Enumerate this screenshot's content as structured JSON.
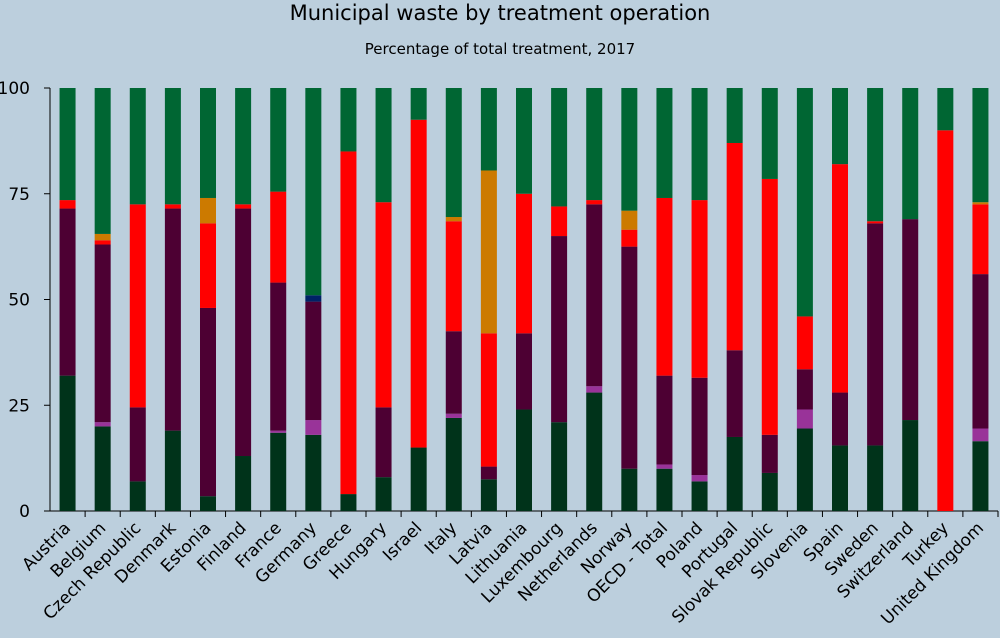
{
  "chart_data": {
    "type": "bar",
    "stacked": true,
    "title": "Municipal waste by treatment operation",
    "subtitle": "Percentage of total treatment, 2017",
    "xlabel": "",
    "ylabel": "",
    "ylim": [
      0,
      100
    ],
    "yticks": [
      "0",
      "25",
      "50",
      "75",
      "100"
    ],
    "grid": false,
    "categories": [
      "Austria",
      "Belgium",
      "Czech Republic",
      "Denmark",
      "Estonia",
      "Finland",
      "France",
      "Germany",
      "Greece",
      "Hungary",
      "Israel",
      "Italy",
      "Latvia",
      "Lithuania",
      "Luxembourg",
      "Netherlands",
      "Norway",
      "OECD - Total",
      "Poland",
      "Portugal",
      "Slovak Republic",
      "Slovenia",
      "Spain",
      "Sweden",
      "Switzerland",
      "Turkey",
      "United Kingdom"
    ],
    "series": [
      {
        "color": "#00331a",
        "values": [
          32,
          20,
          7,
          19,
          3.5,
          13,
          18.5,
          18,
          4,
          8,
          15,
          22,
          7.5,
          24,
          21,
          28,
          10,
          10,
          7,
          17.5,
          9,
          19.5,
          15.5,
          15.5,
          21.5,
          0,
          16.5
        ]
      },
      {
        "color": "#993399",
        "values": [
          0,
          1,
          0,
          0,
          0,
          0,
          0.5,
          3.5,
          0,
          0,
          0,
          1,
          0,
          0,
          0,
          1.5,
          0,
          1,
          1.5,
          0,
          0,
          4.5,
          0,
          0,
          0,
          0,
          3
        ]
      },
      {
        "color": "#4d0033",
        "values": [
          39.5,
          42,
          17.5,
          52.5,
          44.5,
          58.5,
          35,
          28,
          0,
          16.5,
          0,
          19.5,
          3,
          18,
          44,
          43,
          52.5,
          21,
          23,
          20.5,
          9,
          9.5,
          12.5,
          52.5,
          47.5,
          0,
          36.5
        ]
      },
      {
        "color": "#002266",
        "values": [
          0,
          0,
          0,
          0,
          0,
          0,
          0,
          1.5,
          0,
          0,
          0,
          0,
          0,
          0,
          0,
          0,
          0,
          0,
          0,
          0,
          0,
          0,
          0,
          0,
          0,
          0,
          0
        ]
      },
      {
        "color": "#ff0000",
        "values": [
          2,
          1,
          48,
          1,
          20,
          1,
          21.5,
          0,
          81,
          48.5,
          77.5,
          26,
          31.5,
          33,
          7,
          1,
          4,
          42,
          42,
          49,
          60.5,
          12.5,
          54,
          0.5,
          0,
          90,
          16.5
        ]
      },
      {
        "color": "#cc7a00",
        "values": [
          0,
          1.5,
          0,
          0,
          6,
          0,
          0,
          0,
          0,
          0,
          0,
          1,
          38.5,
          0,
          0,
          0,
          4.5,
          0,
          0,
          0,
          0,
          0,
          0,
          0,
          0,
          0,
          0.5
        ]
      },
      {
        "color": "#006633",
        "values": [
          26.5,
          34.5,
          27.5,
          27.5,
          26,
          27.5,
          24.5,
          49,
          15,
          27,
          7.5,
          30.5,
          19.5,
          25,
          28,
          26.5,
          29,
          26,
          26.5,
          13,
          21.5,
          54,
          18,
          31.5,
          31,
          10,
          27
        ]
      }
    ]
  }
}
